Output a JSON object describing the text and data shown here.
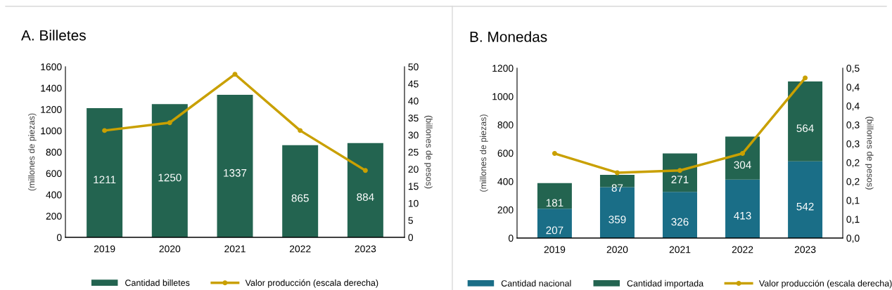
{
  "chart_data": [
    {
      "type": "bar",
      "title": "A. Billetes",
      "ylabel": "(millones de piezas)",
      "y2label": "(billones de pesos)",
      "categories": [
        "2019",
        "2020",
        "2021",
        "2022",
        "2023"
      ],
      "series": [
        {
          "name": "Cantidad billetes",
          "color": "#236450",
          "values": [
            1211,
            1250,
            1337,
            865,
            884
          ],
          "value_labels": [
            "1211",
            "1250",
            "1337",
            "865",
            "884"
          ]
        },
        {
          "name": "Valor producción (escala derecha)",
          "type": "line",
          "axis": "y2",
          "color": "#c9a000",
          "values": [
            31.3,
            33.6,
            47.8,
            31.3,
            19.6
          ]
        }
      ],
      "ylim": [
        0,
        1600
      ],
      "yticks": [
        0,
        200,
        400,
        600,
        800,
        1000,
        1200,
        1400,
        1600
      ],
      "y2lim": [
        0,
        50
      ],
      "y2ticks": [
        0,
        5,
        10,
        15,
        20,
        25,
        30,
        35,
        40,
        45,
        50
      ],
      "grid": false,
      "legend": "bottom",
      "marker": "circle",
      "line_style": "solid"
    },
    {
      "type": "bar",
      "title": "B. Monedas",
      "ylabel": "(millones de piezas)",
      "y2label": "(billones de pesos)",
      "categories": [
        "2019",
        "2020",
        "2021",
        "2022",
        "2023"
      ],
      "stacked": true,
      "series": [
        {
          "name": "Cantidad nacional",
          "color": "#1a6e87",
          "values": [
            207,
            359,
            326,
            413,
            542
          ],
          "value_labels": [
            "207",
            "359",
            "326",
            "413",
            "542"
          ]
        },
        {
          "name": "Cantidad importada",
          "color": "#236450",
          "values": [
            181,
            87,
            271,
            304,
            564
          ],
          "value_labels": [
            "181",
            "87",
            "271",
            "304",
            "564"
          ]
        },
        {
          "name": "Valor producción (escala derecha)",
          "type": "line",
          "axis": "y2",
          "color": "#c9a000",
          "values": [
            0.224,
            0.173,
            0.179,
            0.224,
            0.424
          ]
        }
      ],
      "ylim": [
        0,
        1200
      ],
      "yticks": [
        0,
        200,
        400,
        600,
        800,
        1000,
        1200
      ],
      "y2lim": [
        0,
        0.45
      ],
      "y2ticks": [
        {
          "value": 0,
          "label": "0,0"
        },
        {
          "value": 0.05,
          "label": "0,1"
        },
        {
          "value": 0.1,
          "label": "0,1"
        },
        {
          "value": 0.15,
          "label": "0,2"
        },
        {
          "value": 0.2,
          "label": "0,2"
        },
        {
          "value": 0.25,
          "label": "0,3"
        },
        {
          "value": 0.3,
          "label": "0,3"
        },
        {
          "value": 0.35,
          "label": "0,4"
        },
        {
          "value": 0.4,
          "label": "0,4"
        },
        {
          "value": 0.45,
          "label": "0,5"
        }
      ],
      "grid": false,
      "legend": "bottom",
      "marker": "circle",
      "line_style": "solid"
    }
  ]
}
